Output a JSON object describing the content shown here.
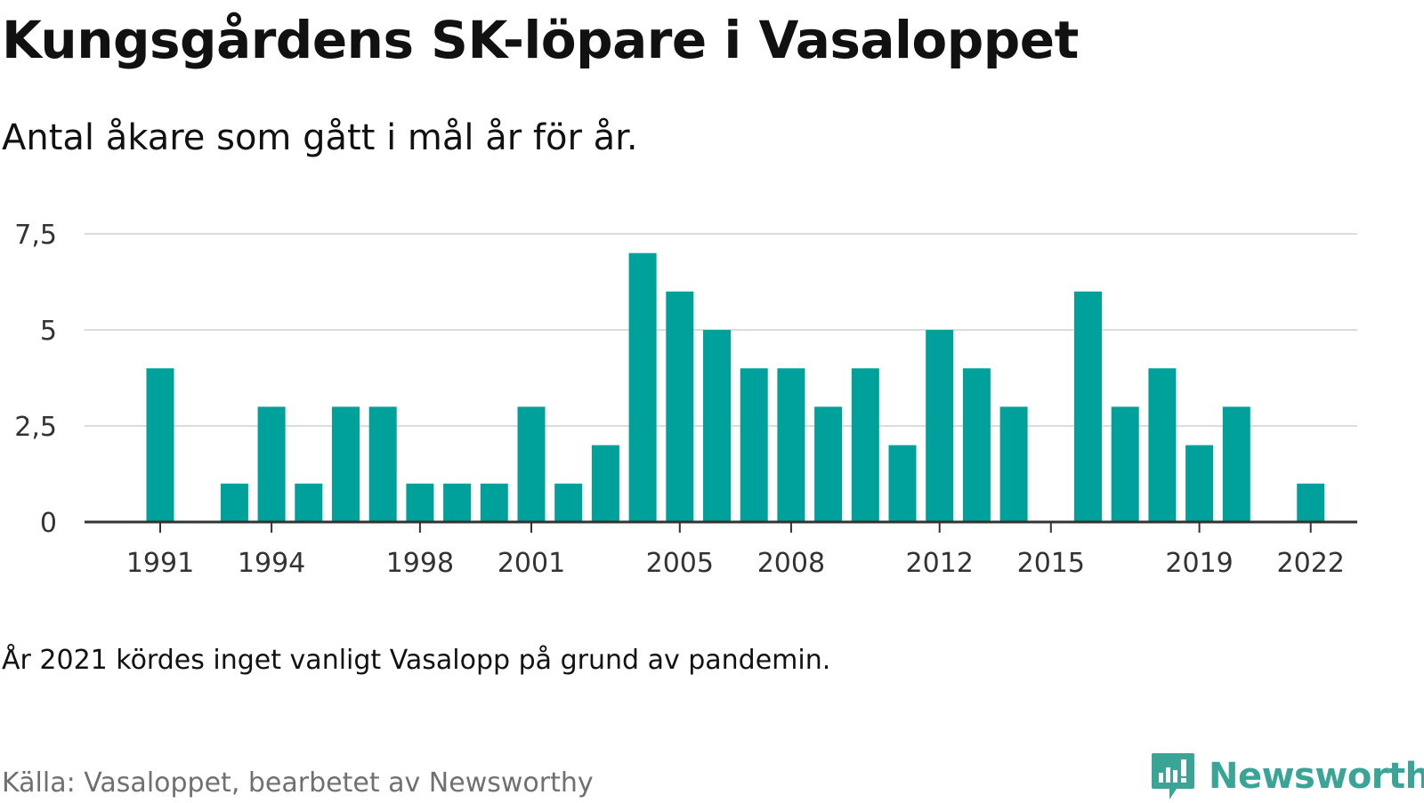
{
  "title": "Kungsgårdens SK-löpare i Vasaloppet",
  "subtitle": "Antal åkare som gått i mål år för år.",
  "note": "År 2021 kördes inget vanligt Vasalopp på grund av pandemin.",
  "source": "Källa: Vasaloppet, bearbetet av Newsworthy",
  "brand": {
    "name": "Newsworthy",
    "icon": "newsworthy-logo-icon",
    "color": "#3aa597"
  },
  "colors": {
    "bar": "#00a19a",
    "grid": "#dcdcdc",
    "axis": "#333333",
    "tick_text": "#333333"
  },
  "chart_data": {
    "type": "bar",
    "title": "",
    "xlabel": "",
    "ylabel": "",
    "ylim": [
      0,
      7.5
    ],
    "yticks": [
      0,
      2.5,
      5,
      7.5
    ],
    "ytick_labels": [
      "0",
      "2,5",
      "5",
      "7,5"
    ],
    "xtick_labels": [
      "1991",
      "1994",
      "1998",
      "2001",
      "2005",
      "2008",
      "2012",
      "2015",
      "2019",
      "2022"
    ],
    "grid": true,
    "categories": [
      1991,
      1992,
      1993,
      1994,
      1995,
      1996,
      1997,
      1998,
      1999,
      2000,
      2001,
      2002,
      2003,
      2004,
      2005,
      2006,
      2007,
      2008,
      2009,
      2010,
      2011,
      2012,
      2013,
      2014,
      2015,
      2016,
      2017,
      2018,
      2019,
      2020,
      2021,
      2022
    ],
    "values": [
      4,
      0,
      1,
      3,
      1,
      3,
      3,
      1,
      1,
      1,
      3,
      1,
      2,
      7,
      6,
      5,
      4,
      4,
      3,
      4,
      2,
      5,
      4,
      3,
      0,
      6,
      3,
      4,
      2,
      3,
      0,
      1
    ]
  }
}
